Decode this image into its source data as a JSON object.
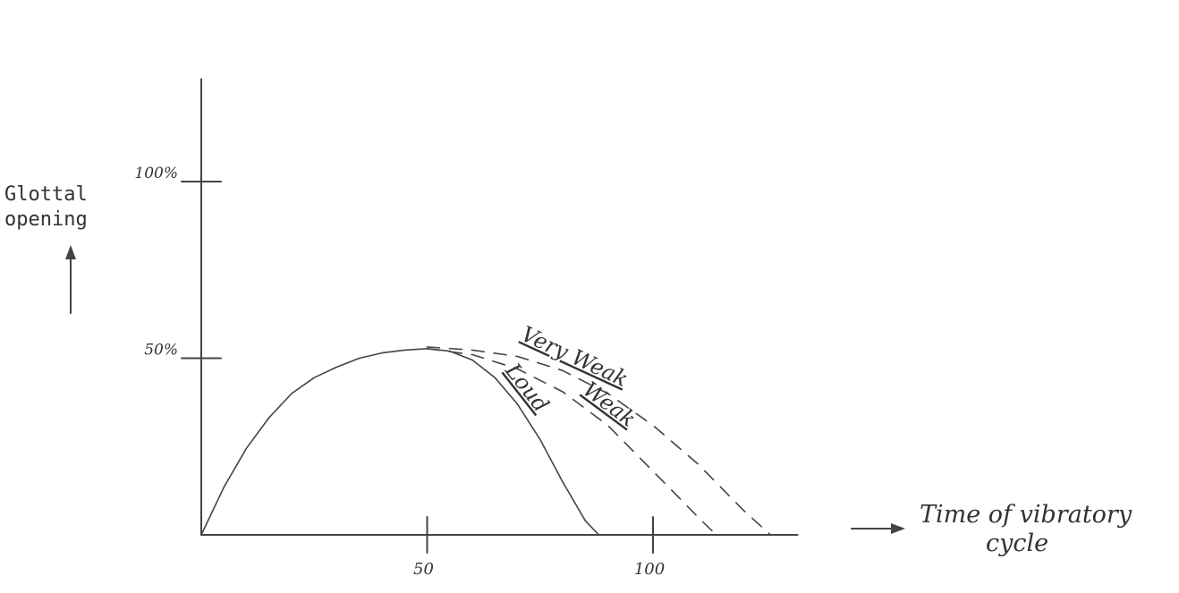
{
  "chart_data": {
    "type": "line",
    "title": "",
    "xlabel": "Time of vibratory cycle",
    "xlabel_line1": "Time of vibratory",
    "xlabel_line2": "cycle",
    "ylabel_line1": "Glottal",
    "ylabel_line2": "opening",
    "xlim": [
      0,
      131
    ],
    "ylim": [
      0,
      130
    ],
    "x_ticks": [
      {
        "value": 50,
        "label": "50"
      },
      {
        "value": 100,
        "label": "100"
      }
    ],
    "y_ticks": [
      {
        "value": 50,
        "label": "50%"
      },
      {
        "value": 100,
        "label": "100%"
      }
    ],
    "series": [
      {
        "name": "Loud",
        "style": "solid",
        "x": [
          0,
          5,
          10,
          15,
          20,
          25,
          30,
          35,
          40,
          45,
          50,
          55,
          60,
          65,
          70,
          75,
          80,
          85,
          88
        ],
        "y": [
          0,
          13.5,
          24.5,
          33.2,
          40,
          44.5,
          47.5,
          50,
          51.5,
          52.3,
          52.7,
          52,
          49.5,
          44.5,
          37,
          27,
          15,
          4,
          0
        ]
      },
      {
        "name": "Weak",
        "style": "dashed",
        "x": [
          50,
          60,
          70,
          80,
          90,
          100,
          105,
          110,
          114
        ],
        "y": [
          52.7,
          51,
          47,
          40.5,
          31,
          18,
          11.5,
          5,
          0
        ]
      },
      {
        "name": "Very Weak",
        "style": "dashed",
        "x": [
          50,
          60,
          70,
          80,
          90,
          100,
          110,
          120,
          126
        ],
        "y": [
          53.2,
          52.3,
          50.5,
          46.5,
          40,
          31,
          20,
          7,
          0
        ]
      }
    ],
    "colors": {
      "ink": "#444444"
    }
  }
}
